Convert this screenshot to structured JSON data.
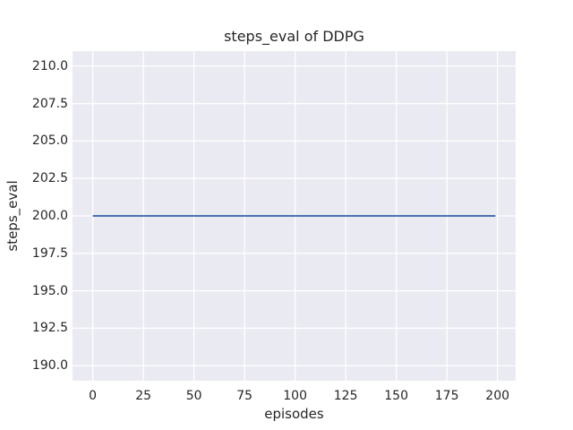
{
  "chart_data": {
    "type": "line",
    "title": "steps_eval of DDPG",
    "xlabel": "episodes",
    "ylabel": "steps_eval",
    "xlim": [
      -10,
      209
    ],
    "ylim": [
      189,
      211
    ],
    "xticks": [
      0,
      25,
      50,
      75,
      100,
      125,
      150,
      175,
      200
    ],
    "xtick_labels": [
      "0",
      "25",
      "50",
      "75",
      "100",
      "125",
      "150",
      "175",
      "200"
    ],
    "yticks": [
      190,
      192.5,
      195,
      197.5,
      200,
      202.5,
      205,
      207.5,
      210
    ],
    "ytick_labels": [
      "190.0",
      "192.5",
      "195.0",
      "197.5",
      "200.0",
      "202.5",
      "205.0",
      "207.5",
      "210.0"
    ],
    "grid": true,
    "legend": false,
    "plot_background": "#eaeaf2",
    "grid_color": "#ffffff",
    "text_color": "#262626",
    "series": [
      {
        "name": "DDPG",
        "color": "#4c72b0",
        "x": [
          0,
          199
        ],
        "y": [
          200,
          200
        ]
      }
    ]
  }
}
